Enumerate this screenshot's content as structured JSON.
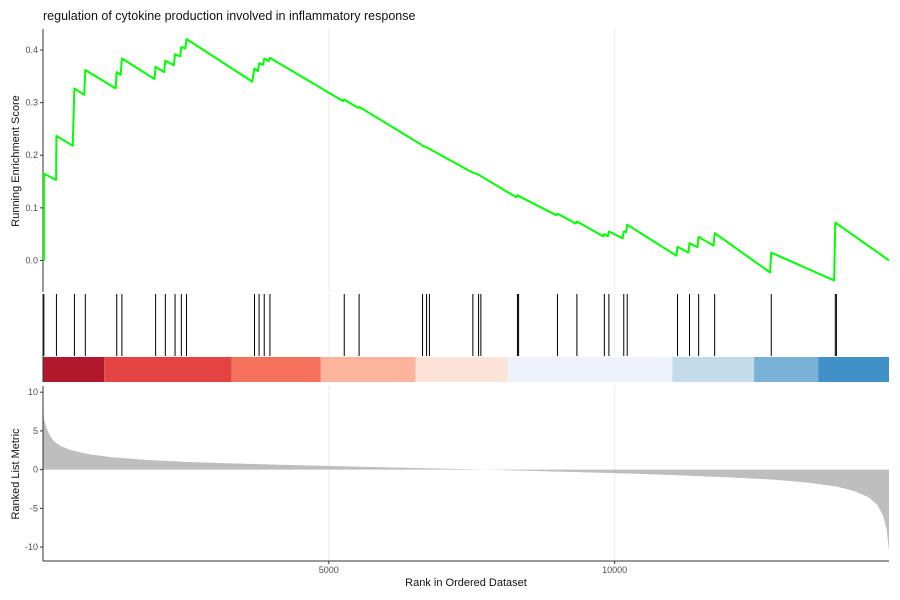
{
  "chart_data": {
    "type": "line",
    "title": "regulation of cytokine production involved in inflammatory response",
    "xlabel": "Rank in Ordered Dataset",
    "xlim": [
      0,
      14800
    ],
    "x_ticks": [
      5000,
      10000
    ],
    "grid": "vertical only",
    "colors": {
      "es_line": "#00ff00",
      "hit_line": "#000000",
      "metric_fill": "#bebebe",
      "grid": "#ebebeb",
      "axis": "#333333"
    },
    "running_es": {
      "ylabel": "Running Enrichment Score",
      "ylim": [
        -0.06,
        0.44
      ],
      "y_ticks": [
        0.0,
        0.1,
        0.2,
        0.3,
        0.4
      ],
      "y_tick_labels": [
        "0.0",
        "0.1",
        "0.2",
        "0.3",
        "0.4"
      ],
      "points": [
        [
          0,
          0.0
        ],
        [
          15,
          0.0
        ],
        [
          15,
          0.165
        ],
        [
          230,
          0.153
        ],
        [
          235,
          0.237
        ],
        [
          520,
          0.218
        ],
        [
          550,
          0.327
        ],
        [
          720,
          0.315
        ],
        [
          740,
          0.362
        ],
        [
          1270,
          0.327
        ],
        [
          1290,
          0.358
        ],
        [
          1360,
          0.353
        ],
        [
          1380,
          0.384
        ],
        [
          1950,
          0.345
        ],
        [
          1970,
          0.368
        ],
        [
          2120,
          0.358
        ],
        [
          2140,
          0.38
        ],
        [
          2290,
          0.371
        ],
        [
          2310,
          0.392
        ],
        [
          2400,
          0.388
        ],
        [
          2420,
          0.406
        ],
        [
          2490,
          0.403
        ],
        [
          2510,
          0.421
        ],
        [
          3660,
          0.34
        ],
        [
          3700,
          0.365
        ],
        [
          3760,
          0.36
        ],
        [
          3780,
          0.375
        ],
        [
          3850,
          0.372
        ],
        [
          3870,
          0.384
        ],
        [
          3950,
          0.379
        ],
        [
          3970,
          0.385
        ],
        [
          5250,
          0.303
        ],
        [
          5270,
          0.306
        ],
        [
          5510,
          0.29
        ],
        [
          5530,
          0.292
        ],
        [
          6620,
          0.22
        ],
        [
          6640,
          0.218
        ],
        [
          6690,
          0.216
        ],
        [
          6710,
          0.215
        ],
        [
          7500,
          0.168
        ],
        [
          7520,
          0.167
        ],
        [
          7600,
          0.164
        ],
        [
          7620,
          0.163
        ],
        [
          8280,
          0.12
        ],
        [
          8300,
          0.124
        ],
        [
          8350,
          0.121
        ],
        [
          8980,
          0.086
        ],
        [
          9000,
          0.089
        ],
        [
          9320,
          0.07
        ],
        [
          9340,
          0.074
        ],
        [
          9800,
          0.046
        ],
        [
          9820,
          0.05
        ],
        [
          9880,
          0.046
        ],
        [
          9900,
          0.055
        ],
        [
          10140,
          0.042
        ],
        [
          10160,
          0.055
        ],
        [
          10200,
          0.054
        ],
        [
          10220,
          0.068
        ],
        [
          11080,
          0.009
        ],
        [
          11100,
          0.026
        ],
        [
          11290,
          0.015
        ],
        [
          11310,
          0.033
        ],
        [
          11450,
          0.025
        ],
        [
          11470,
          0.045
        ],
        [
          11730,
          0.028
        ],
        [
          11750,
          0.052
        ],
        [
          12720,
          -0.023
        ],
        [
          12740,
          0.015
        ],
        [
          13840,
          -0.038
        ],
        [
          13860,
          0.072
        ],
        [
          14800,
          0.0
        ]
      ]
    },
    "hits": [
      15,
      235,
      550,
      740,
      1290,
      1380,
      1970,
      2140,
      2310,
      2420,
      2510,
      3700,
      3780,
      3870,
      3970,
      5270,
      5530,
      6640,
      6710,
      6760,
      7520,
      7620,
      7660,
      8300,
      8320,
      9000,
      9340,
      9820,
      9900,
      10160,
      10220,
      11100,
      11310,
      11470,
      11750,
      12740,
      13860,
      13880
    ],
    "color_bar": [
      {
        "from": 0,
        "to": 1070,
        "color": "#b2182b"
      },
      {
        "from": 1070,
        "to": 3300,
        "color": "#e34441"
      },
      {
        "from": 3300,
        "to": 4860,
        "color": "#f4725c"
      },
      {
        "from": 4860,
        "to": 6520,
        "color": "#fcb49d"
      },
      {
        "from": 6520,
        "to": 8130,
        "color": "#fde2d7"
      },
      {
        "from": 8130,
        "to": 11010,
        "color": "#edf2fb"
      },
      {
        "from": 11010,
        "to": 12440,
        "color": "#c3dcea"
      },
      {
        "from": 12440,
        "to": 13560,
        "color": "#79b2d7"
      },
      {
        "from": 13560,
        "to": 14800,
        "color": "#4190c6"
      }
    ],
    "ranked_metric": {
      "ylabel": "Ranked List Metric",
      "ylim": [
        -11.8,
        10.8
      ],
      "y_ticks": [
        -10,
        -5,
        0,
        5,
        10
      ],
      "y_tick_labels": [
        "-10",
        "-5",
        "0",
        "5",
        "10"
      ],
      "points": [
        [
          0,
          8.2
        ],
        [
          20,
          6.5
        ],
        [
          60,
          5.4
        ],
        [
          120,
          4.4
        ],
        [
          200,
          3.6
        ],
        [
          320,
          3.0
        ],
        [
          500,
          2.5
        ],
        [
          800,
          2.0
        ],
        [
          1200,
          1.6
        ],
        [
          1800,
          1.25
        ],
        [
          2500,
          1.0
        ],
        [
          3300,
          0.8
        ],
        [
          4300,
          0.6
        ],
        [
          5300,
          0.42
        ],
        [
          6300,
          0.25
        ],
        [
          7300,
          0.08
        ],
        [
          8000,
          -0.05
        ],
        [
          9000,
          -0.25
        ],
        [
          10000,
          -0.45
        ],
        [
          11000,
          -0.7
        ],
        [
          12000,
          -1.0
        ],
        [
          12800,
          -1.3
        ],
        [
          13400,
          -1.7
        ],
        [
          13900,
          -2.2
        ],
        [
          14200,
          -2.8
        ],
        [
          14450,
          -3.6
        ],
        [
          14600,
          -4.6
        ],
        [
          14700,
          -6.0
        ],
        [
          14760,
          -7.8
        ],
        [
          14800,
          -10.5
        ]
      ]
    }
  }
}
